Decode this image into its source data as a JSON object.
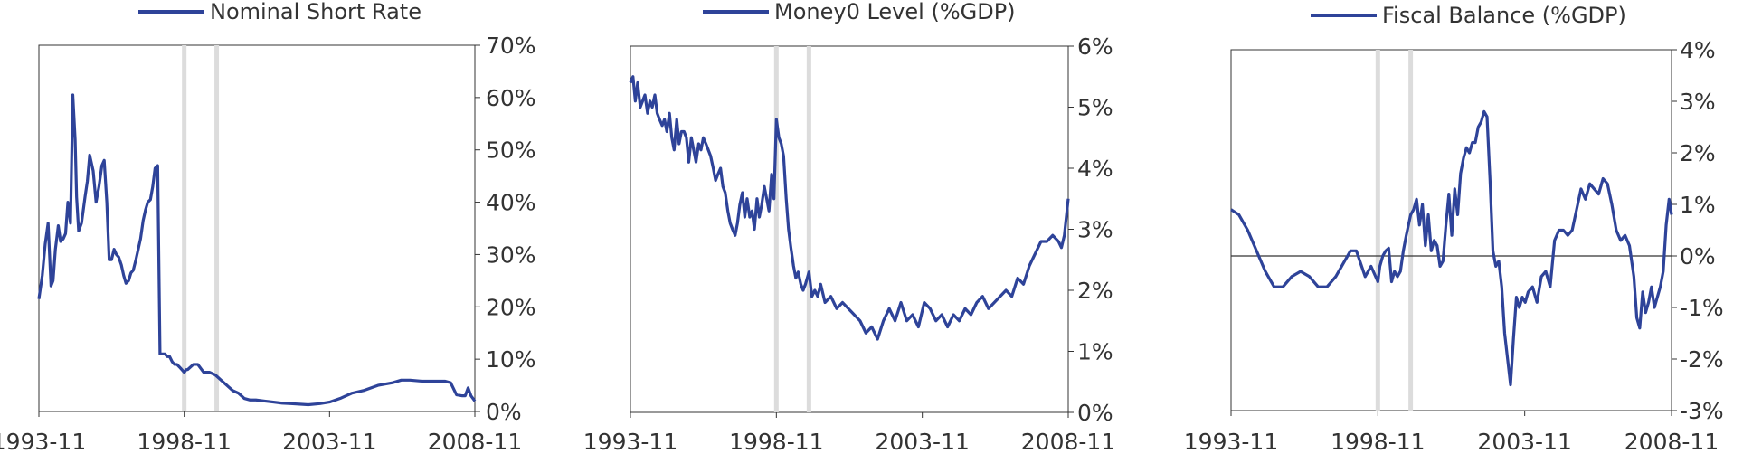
{
  "colors": {
    "series": "#2E4399",
    "recession": "#DCDCDC",
    "axis": "#333333",
    "zero": "#333333"
  },
  "chart_data": [
    {
      "type": "line",
      "legend": "Nominal Short Rate",
      "legend_placement": "top",
      "y_axis_side": "right",
      "grid": false,
      "xlim": [
        1993.833,
        2008.833
      ],
      "x_tick_values": [
        1993.833,
        1998.833,
        2003.833,
        2008.833
      ],
      "x_tick_labels": [
        "1993-11",
        "1998-11",
        "2003-11",
        "2008-11"
      ],
      "ylim": [
        0,
        70
      ],
      "y_tick_values": [
        0,
        10,
        20,
        30,
        40,
        50,
        60,
        70
      ],
      "y_tick_labels": [
        "0%",
        "10%",
        "20%",
        "30%",
        "40%",
        "50%",
        "60%",
        "70%"
      ],
      "shaded_x": [
        1998.833,
        1999.95
      ],
      "series": [
        {
          "x": [
            1993.833,
            1993.95,
            1994.05,
            1994.15,
            1994.25,
            1994.32,
            1994.4,
            1994.5,
            1994.58,
            1994.67,
            1994.75,
            1994.83,
            1994.92,
            1995.0,
            1995.08,
            1995.13,
            1995.2,
            1995.3,
            1995.42,
            1995.5,
            1995.58,
            1995.7,
            1995.8,
            1995.9,
            1996.0,
            1996.08,
            1996.17,
            1996.25,
            1996.33,
            1996.42,
            1996.5,
            1996.58,
            1996.67,
            1996.75,
            1996.83,
            1996.92,
            1997.0,
            1997.08,
            1997.17,
            1997.25,
            1997.33,
            1997.42,
            1997.5,
            1997.58,
            1997.67,
            1997.75,
            1997.83,
            1997.92,
            1998.0,
            1998.08,
            1998.17,
            1998.25,
            1998.33,
            1998.42,
            1998.5,
            1998.58,
            1998.67,
            1998.75,
            1998.833,
            1998.9,
            1998.95,
            1999.05,
            1999.15,
            1999.3,
            1999.5,
            1999.7,
            1999.9,
            2000.1,
            2000.3,
            2000.5,
            2000.7,
            2000.9,
            2001.1,
            2001.3,
            2001.6,
            2001.9,
            2002.2,
            2002.5,
            2002.8,
            2003.1,
            2003.5,
            2003.833,
            2004.2,
            2004.6,
            2005.0,
            2005.5,
            2006.0,
            2006.3,
            2006.6,
            2007.0,
            2007.4,
            2007.8,
            2008.0,
            2008.2,
            2008.4,
            2008.5,
            2008.6,
            2008.7,
            2008.833
          ],
          "y": [
            21.5,
            26,
            32,
            36,
            24,
            25,
            31,
            35.5,
            32.5,
            33,
            34,
            40,
            36,
            60.5,
            52,
            41,
            34.5,
            36,
            41,
            44,
            49,
            46,
            40,
            43,
            47,
            48,
            40,
            29,
            29,
            31,
            30,
            29.5,
            28,
            26,
            24.5,
            25,
            26.5,
            27,
            29,
            31,
            33,
            36.5,
            38.5,
            40,
            40.5,
            43,
            46.5,
            47,
            11,
            11,
            11,
            10.5,
            10.5,
            9.5,
            9,
            9,
            8.5,
            8,
            7.5,
            8,
            8,
            8.5,
            9,
            9,
            7.5,
            7.5,
            7,
            6,
            5,
            4,
            3.5,
            2.5,
            2.2,
            2.2,
            2,
            1.8,
            1.6,
            1.5,
            1.4,
            1.3,
            1.5,
            1.8,
            2.5,
            3.5,
            4,
            5,
            5.5,
            6,
            6,
            5.8,
            5.8,
            5.8,
            5.5,
            3.2,
            3,
            3,
            4.5,
            3,
            2
          ]
        }
      ]
    },
    {
      "type": "line",
      "legend": "Money0 Level (%GDP)",
      "legend_placement": "top",
      "y_axis_side": "right",
      "grid": false,
      "xlim": [
        1993.833,
        2008.833
      ],
      "x_tick_values": [
        1993.833,
        1998.833,
        2003.833,
        2008.833
      ],
      "x_tick_labels": [
        "1993-11",
        "1998-11",
        "2003-11",
        "2008-11"
      ],
      "ylim": [
        0,
        6
      ],
      "y_tick_values": [
        0,
        1,
        2,
        3,
        4,
        5,
        6
      ],
      "y_tick_labels": [
        "0%",
        "1%",
        "2%",
        "3%",
        "4%",
        "5%",
        "6%"
      ],
      "shaded_x": [
        1998.833,
        1999.95
      ],
      "series": [
        {
          "x": [
            1993.833,
            1993.92,
            1994.0,
            1994.08,
            1994.17,
            1994.25,
            1994.33,
            1994.42,
            1994.5,
            1994.58,
            1994.67,
            1994.75,
            1994.83,
            1994.92,
            1995.0,
            1995.08,
            1995.17,
            1995.25,
            1995.33,
            1995.42,
            1995.5,
            1995.58,
            1995.67,
            1995.75,
            1995.83,
            1995.92,
            1996.0,
            1996.08,
            1996.17,
            1996.25,
            1996.33,
            1996.42,
            1996.5,
            1996.58,
            1996.67,
            1996.75,
            1996.83,
            1996.92,
            1997.0,
            1997.08,
            1997.17,
            1997.25,
            1997.33,
            1997.42,
            1997.5,
            1997.58,
            1997.67,
            1997.75,
            1997.83,
            1997.92,
            1998.0,
            1998.08,
            1998.17,
            1998.25,
            1998.33,
            1998.42,
            1998.5,
            1998.58,
            1998.67,
            1998.75,
            1998.833,
            1998.92,
            1999.0,
            1999.08,
            1999.17,
            1999.25,
            1999.33,
            1999.42,
            1999.5,
            1999.58,
            1999.67,
            1999.75,
            1999.83,
            1999.95,
            2000.05,
            2000.15,
            2000.25,
            2000.35,
            2000.5,
            2000.7,
            2000.9,
            2001.1,
            2001.3,
            2001.5,
            2001.7,
            2001.9,
            2002.1,
            2002.3,
            2002.5,
            2002.7,
            2002.9,
            2003.1,
            2003.3,
            2003.5,
            2003.7,
            2003.9,
            2004.1,
            2004.3,
            2004.5,
            2004.7,
            2004.9,
            2005.1,
            2005.3,
            2005.5,
            2005.7,
            2005.9,
            2006.1,
            2006.3,
            2006.5,
            2006.7,
            2006.9,
            2007.1,
            2007.3,
            2007.5,
            2007.7,
            2007.9,
            2008.1,
            2008.3,
            2008.5,
            2008.6,
            2008.7,
            2008.833
          ],
          "y": [
            5.4,
            5.5,
            5.1,
            5.4,
            5.0,
            5.1,
            5.2,
            4.9,
            5.1,
            5.0,
            5.2,
            4.9,
            4.8,
            4.7,
            4.8,
            4.6,
            4.9,
            4.5,
            4.3,
            4.8,
            4.4,
            4.6,
            4.6,
            4.5,
            4.1,
            4.5,
            4.3,
            4.1,
            4.4,
            4.3,
            4.5,
            4.4,
            4.3,
            4.2,
            4.0,
            3.8,
            3.9,
            4.0,
            3.7,
            3.6,
            3.3,
            3.1,
            3.0,
            2.9,
            3.1,
            3.4,
            3.6,
            3.2,
            3.5,
            3.2,
            3.3,
            3.0,
            3.5,
            3.2,
            3.4,
            3.7,
            3.5,
            3.3,
            3.9,
            3.5,
            4.8,
            4.5,
            4.4,
            4.2,
            3.5,
            3.0,
            2.7,
            2.4,
            2.2,
            2.3,
            2.1,
            2.0,
            2.1,
            2.3,
            1.9,
            2.0,
            1.9,
            2.1,
            1.8,
            1.9,
            1.7,
            1.8,
            1.7,
            1.6,
            1.5,
            1.3,
            1.4,
            1.2,
            1.5,
            1.7,
            1.5,
            1.8,
            1.5,
            1.6,
            1.4,
            1.8,
            1.7,
            1.5,
            1.6,
            1.4,
            1.6,
            1.5,
            1.7,
            1.6,
            1.8,
            1.9,
            1.7,
            1.8,
            1.9,
            2.0,
            1.9,
            2.2,
            2.1,
            2.4,
            2.6,
            2.8,
            2.8,
            2.9,
            2.8,
            2.7,
            2.9,
            3.5
          ]
        }
      ]
    },
    {
      "type": "line",
      "legend": "Fiscal Balance (%GDP)",
      "legend_placement": "top",
      "y_axis_side": "right",
      "grid": false,
      "zero_line": true,
      "xlim": [
        1993.833,
        2008.833
      ],
      "x_tick_values": [
        1993.833,
        1998.833,
        2003.833,
        2008.833
      ],
      "x_tick_labels": [
        "1993-11",
        "1998-11",
        "2003-11",
        "2008-11"
      ],
      "ylim": [
        -3,
        4
      ],
      "y_tick_values": [
        -3,
        -2,
        -1,
        0,
        1,
        2,
        3,
        4
      ],
      "y_tick_labels": [
        "-3%",
        "-2%",
        "-1%",
        "0%",
        "1%",
        "2%",
        "3%",
        "4%"
      ],
      "shaded_x": [
        1998.833,
        1999.95
      ],
      "series": [
        {
          "x": [
            1993.833,
            1994.1,
            1994.4,
            1994.7,
            1995.0,
            1995.3,
            1995.6,
            1995.9,
            1996.2,
            1996.5,
            1996.8,
            1997.1,
            1997.4,
            1997.7,
            1997.9,
            1998.1,
            1998.4,
            1998.6,
            1998.833,
            1998.9,
            1999.0,
            1999.1,
            1999.2,
            1999.3,
            1999.4,
            1999.5,
            1999.6,
            1999.7,
            1999.8,
            1999.95,
            2000.05,
            2000.15,
            2000.25,
            2000.35,
            2000.45,
            2000.55,
            2000.65,
            2000.75,
            2000.85,
            2000.95,
            2001.05,
            2001.15,
            2001.25,
            2001.35,
            2001.45,
            2001.55,
            2001.65,
            2001.75,
            2001.85,
            2001.95,
            2002.05,
            2002.15,
            2002.25,
            2002.35,
            2002.45,
            2002.55,
            2002.65,
            2002.75,
            2002.85,
            2002.95,
            2003.05,
            2003.15,
            2003.25,
            2003.35,
            2003.45,
            2003.55,
            2003.65,
            2003.75,
            2003.85,
            2003.95,
            2004.1,
            2004.25,
            2004.4,
            2004.55,
            2004.7,
            2004.85,
            2005.0,
            2005.15,
            2005.3,
            2005.45,
            2005.6,
            2005.75,
            2005.9,
            2006.05,
            2006.2,
            2006.35,
            2006.5,
            2006.65,
            2006.8,
            2006.95,
            2007.1,
            2007.25,
            2007.4,
            2007.55,
            2007.65,
            2007.75,
            2007.85,
            2007.95,
            2008.05,
            2008.15,
            2008.25,
            2008.35,
            2008.45,
            2008.55,
            2008.65,
            2008.75,
            2008.833
          ],
          "y": [
            0.9,
            0.8,
            0.5,
            0.1,
            -0.3,
            -0.6,
            -0.6,
            -0.4,
            -0.3,
            -0.4,
            -0.6,
            -0.6,
            -0.4,
            -0.1,
            0.1,
            0.1,
            -0.4,
            -0.2,
            -0.5,
            -0.2,
            0.0,
            0.1,
            0.15,
            -0.5,
            -0.3,
            -0.4,
            -0.3,
            0.1,
            0.4,
            0.8,
            0.9,
            1.1,
            0.6,
            1.0,
            0.2,
            0.8,
            0.1,
            0.3,
            0.2,
            -0.2,
            -0.1,
            0.6,
            1.2,
            0.4,
            1.3,
            0.8,
            1.6,
            1.9,
            2.1,
            2.0,
            2.2,
            2.2,
            2.5,
            2.6,
            2.8,
            2.7,
            1.5,
            0.1,
            -0.2,
            -0.1,
            -0.6,
            -1.5,
            -2.0,
            -2.5,
            -1.6,
            -0.8,
            -1.0,
            -0.8,
            -0.9,
            -0.7,
            -0.6,
            -0.9,
            -0.4,
            -0.3,
            -0.6,
            0.3,
            0.5,
            0.5,
            0.4,
            0.5,
            0.9,
            1.3,
            1.1,
            1.4,
            1.3,
            1.2,
            1.5,
            1.4,
            1.0,
            0.5,
            0.3,
            0.4,
            0.2,
            -0.4,
            -1.2,
            -1.4,
            -0.7,
            -1.1,
            -0.9,
            -0.6,
            -1.0,
            -0.8,
            -0.6,
            -0.3,
            0.6,
            1.1,
            0.8
          ]
        }
      ]
    }
  ]
}
